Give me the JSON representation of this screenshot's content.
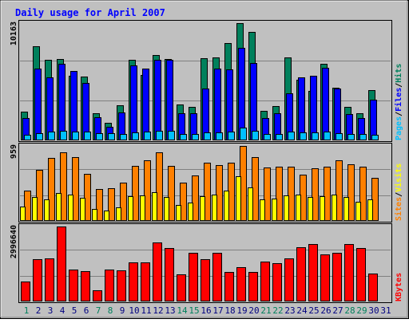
{
  "colors": {
    "hits": "#00805c",
    "files": "#0000ff",
    "pages": "#00c0ff",
    "visits": "#ffff00",
    "sites": "#ff8000",
    "kbytes": "#ff0000",
    "title": "#0000ff",
    "weekend_day": "#00805c",
    "weekday_day": "#000080",
    "panel_bg": "#c0c0c0",
    "frame_bg": "#c0c0c0"
  },
  "chart_data": [
    {
      "type": "bar",
      "title": "Daily usage for April 2007",
      "ymax_label": "10163",
      "ylim": [
        0,
        10163
      ],
      "legend_vertical": [
        "Pages",
        "Files",
        "Hits"
      ],
      "legend_separator": "/",
      "categories": [
        "1",
        "2",
        "3",
        "4",
        "5",
        "6",
        "7",
        "8",
        "9",
        "10",
        "11",
        "12",
        "13",
        "14",
        "15",
        "16",
        "17",
        "18",
        "19",
        "20",
        "21",
        "22",
        "23",
        "24",
        "25",
        "26",
        "27",
        "28",
        "29",
        "30",
        "31"
      ],
      "weekend_days": [
        1,
        7,
        8,
        14,
        15,
        21,
        22,
        28,
        29
      ],
      "series": [
        {
          "name": "Hits",
          "values": [
            2470,
            8180,
            6980,
            7050,
            5630,
            5560,
            2330,
            1510,
            3020,
            6980,
            5700,
            7400,
            7050,
            3090,
            2880,
            7120,
            7190,
            8440,
            10163,
            9390,
            2540,
            2950,
            7190,
            5280,
            4320,
            6650,
            4530,
            2880,
            2330,
            4330,
            0
          ]
        },
        {
          "name": "Files",
          "values": [
            1920,
            6230,
            5490,
            6630,
            6030,
            5000,
            1980,
            1160,
            2400,
            6510,
            6240,
            6990,
            6990,
            2330,
            2330,
            4490,
            6190,
            6170,
            7990,
            6710,
            1920,
            2330,
            4080,
            5490,
            5630,
            6320,
            4520,
            2270,
            1920,
            3500,
            0
          ]
        },
        {
          "name": "Pages",
          "values": [
            480,
            630,
            780,
            820,
            750,
            750,
            620,
            620,
            550,
            720,
            760,
            800,
            800,
            520,
            540,
            700,
            700,
            770,
            1100,
            820,
            560,
            550,
            760,
            700,
            700,
            750,
            650,
            550,
            540,
            510,
            0
          ]
        }
      ]
    },
    {
      "type": "bar",
      "ymax_label": "959",
      "ylim": [
        0,
        959
      ],
      "legend_vertical": [
        "Sites",
        "Visits"
      ],
      "legend_separator": "/",
      "categories": [
        "1",
        "2",
        "3",
        "4",
        "5",
        "6",
        "7",
        "8",
        "9",
        "10",
        "11",
        "12",
        "13",
        "14",
        "15",
        "16",
        "17",
        "18",
        "19",
        "20",
        "21",
        "22",
        "23",
        "24",
        "25",
        "26",
        "27",
        "28",
        "29",
        "30",
        "31"
      ],
      "series": [
        {
          "name": "Visits",
          "values": [
            180,
            310,
            280,
            360,
            340,
            300,
            150,
            130,
            170,
            320,
            330,
            370,
            310,
            200,
            230,
            320,
            340,
            390,
            570,
            430,
            280,
            290,
            330,
            340,
            310,
            320,
            340,
            310,
            240,
            280,
            0
          ]
        },
        {
          "name": "Sites",
          "values": [
            390,
            650,
            810,
            880,
            820,
            600,
            410,
            420,
            490,
            700,
            780,
            880,
            700,
            490,
            580,
            740,
            710,
            740,
            959,
            820,
            680,
            690,
            690,
            590,
            670,
            690,
            780,
            720,
            690,
            550,
            0
          ]
        }
      ]
    },
    {
      "type": "bar",
      "ymax_label": "2996640",
      "ylim": [
        0,
        2996640
      ],
      "legend_vertical": [
        "KBytes"
      ],
      "categories": [
        "1",
        "2",
        "3",
        "4",
        "5",
        "6",
        "7",
        "8",
        "9",
        "10",
        "11",
        "12",
        "13",
        "14",
        "15",
        "16",
        "17",
        "18",
        "19",
        "20",
        "21",
        "22",
        "23",
        "24",
        "25",
        "26",
        "27",
        "28",
        "29",
        "30",
        "31"
      ],
      "series": [
        {
          "name": "KBytes",
          "values": [
            800000,
            1690000,
            1730000,
            2996640,
            1280000,
            1210000,
            450000,
            1260000,
            1250000,
            1570000,
            1570000,
            2370000,
            2120000,
            1090000,
            1950000,
            1690000,
            1960000,
            1190000,
            1380000,
            1170000,
            1600000,
            1530000,
            1720000,
            2180000,
            2280000,
            1870000,
            1930000,
            2310000,
            2130000,
            1110000,
            0
          ]
        }
      ]
    }
  ]
}
